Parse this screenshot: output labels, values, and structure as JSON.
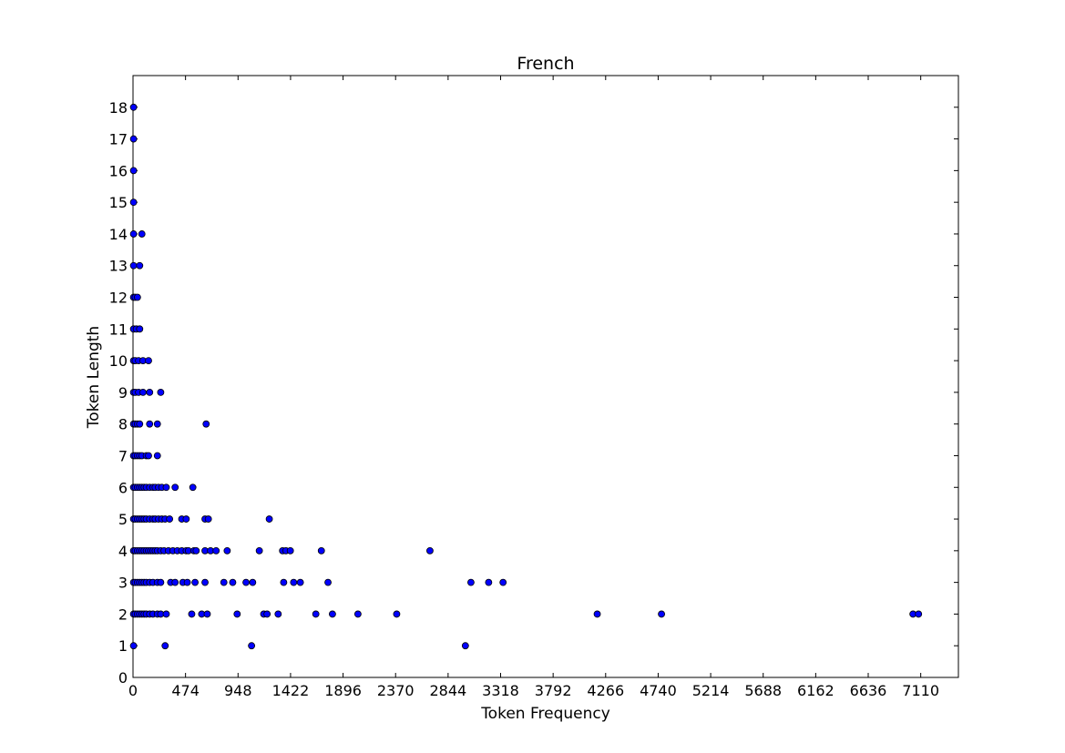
{
  "chart_data": {
    "type": "scatter",
    "title": "French",
    "xlabel": "Token Frequency",
    "ylabel": "Token Length",
    "xlim": [
      0,
      7450
    ],
    "ylim": [
      0,
      19
    ],
    "x_ticks": [
      0,
      474,
      948,
      1422,
      1896,
      2370,
      2844,
      3318,
      3792,
      4266,
      4740,
      5214,
      5688,
      6162,
      6636,
      7110
    ],
    "y_ticks": [
      0,
      1,
      2,
      3,
      4,
      5,
      6,
      7,
      8,
      9,
      10,
      11,
      12,
      13,
      14,
      15,
      16,
      17,
      18
    ],
    "grid": false,
    "marker_color": "#0000ff",
    "marker_edge_color": "#000000",
    "points": [
      [
        5,
        18
      ],
      [
        5,
        17
      ],
      [
        5,
        16
      ],
      [
        5,
        15
      ],
      [
        5,
        14
      ],
      [
        80,
        14
      ],
      [
        5,
        13
      ],
      [
        60,
        13
      ],
      [
        5,
        12
      ],
      [
        20,
        12
      ],
      [
        40,
        12
      ],
      [
        5,
        11
      ],
      [
        30,
        11
      ],
      [
        60,
        11
      ],
      [
        5,
        10
      ],
      [
        20,
        10
      ],
      [
        50,
        10
      ],
      [
        90,
        10
      ],
      [
        140,
        10
      ],
      [
        5,
        9
      ],
      [
        20,
        9
      ],
      [
        50,
        9
      ],
      [
        90,
        9
      ],
      [
        150,
        9
      ],
      [
        250,
        9
      ],
      [
        5,
        8
      ],
      [
        20,
        8
      ],
      [
        40,
        8
      ],
      [
        60,
        8
      ],
      [
        150,
        8
      ],
      [
        220,
        8
      ],
      [
        660,
        8
      ],
      [
        5,
        7
      ],
      [
        20,
        7
      ],
      [
        40,
        7
      ],
      [
        60,
        7
      ],
      [
        80,
        7
      ],
      [
        120,
        7
      ],
      [
        140,
        7
      ],
      [
        220,
        7
      ],
      [
        5,
        6
      ],
      [
        20,
        6
      ],
      [
        40,
        6
      ],
      [
        60,
        6
      ],
      [
        80,
        6
      ],
      [
        100,
        6
      ],
      [
        120,
        6
      ],
      [
        150,
        6
      ],
      [
        180,
        6
      ],
      [
        200,
        6
      ],
      [
        230,
        6
      ],
      [
        260,
        6
      ],
      [
        300,
        6
      ],
      [
        380,
        6
      ],
      [
        540,
        6
      ],
      [
        5,
        5
      ],
      [
        20,
        5
      ],
      [
        40,
        5
      ],
      [
        60,
        5
      ],
      [
        80,
        5
      ],
      [
        100,
        5
      ],
      [
        120,
        5
      ],
      [
        150,
        5
      ],
      [
        180,
        5
      ],
      [
        200,
        5
      ],
      [
        230,
        5
      ],
      [
        260,
        5
      ],
      [
        290,
        5
      ],
      [
        330,
        5
      ],
      [
        440,
        5
      ],
      [
        480,
        5
      ],
      [
        650,
        5
      ],
      [
        680,
        5
      ],
      [
        1230,
        5
      ],
      [
        5,
        4
      ],
      [
        20,
        4
      ],
      [
        40,
        4
      ],
      [
        60,
        4
      ],
      [
        80,
        4
      ],
      [
        100,
        4
      ],
      [
        120,
        4
      ],
      [
        140,
        4
      ],
      [
        160,
        4
      ],
      [
        180,
        4
      ],
      [
        200,
        4
      ],
      [
        220,
        4
      ],
      [
        250,
        4
      ],
      [
        280,
        4
      ],
      [
        320,
        4
      ],
      [
        360,
        4
      ],
      [
        400,
        4
      ],
      [
        440,
        4
      ],
      [
        480,
        4
      ],
      [
        500,
        4
      ],
      [
        550,
        4
      ],
      [
        570,
        4
      ],
      [
        650,
        4
      ],
      [
        700,
        4
      ],
      [
        750,
        4
      ],
      [
        850,
        4
      ],
      [
        1140,
        4
      ],
      [
        1350,
        4
      ],
      [
        1380,
        4
      ],
      [
        1420,
        4
      ],
      [
        1700,
        4
      ],
      [
        2680,
        4
      ],
      [
        5,
        3
      ],
      [
        20,
        3
      ],
      [
        40,
        3
      ],
      [
        60,
        3
      ],
      [
        80,
        3
      ],
      [
        100,
        3
      ],
      [
        120,
        3
      ],
      [
        150,
        3
      ],
      [
        180,
        3
      ],
      [
        220,
        3
      ],
      [
        250,
        3
      ],
      [
        340,
        3
      ],
      [
        380,
        3
      ],
      [
        450,
        3
      ],
      [
        490,
        3
      ],
      [
        560,
        3
      ],
      [
        650,
        3
      ],
      [
        820,
        3
      ],
      [
        900,
        3
      ],
      [
        1020,
        3
      ],
      [
        1080,
        3
      ],
      [
        1360,
        3
      ],
      [
        1450,
        3
      ],
      [
        1510,
        3
      ],
      [
        1760,
        3
      ],
      [
        3050,
        3
      ],
      [
        3210,
        3
      ],
      [
        3340,
        3
      ],
      [
        5,
        2
      ],
      [
        20,
        2
      ],
      [
        40,
        2
      ],
      [
        60,
        2
      ],
      [
        80,
        2
      ],
      [
        100,
        2
      ],
      [
        120,
        2
      ],
      [
        150,
        2
      ],
      [
        180,
        2
      ],
      [
        220,
        2
      ],
      [
        250,
        2
      ],
      [
        300,
        2
      ],
      [
        530,
        2
      ],
      [
        620,
        2
      ],
      [
        670,
        2
      ],
      [
        940,
        2
      ],
      [
        1180,
        2
      ],
      [
        1210,
        2
      ],
      [
        1310,
        2
      ],
      [
        1650,
        2
      ],
      [
        1800,
        2
      ],
      [
        2030,
        2
      ],
      [
        2380,
        2
      ],
      [
        4190,
        2
      ],
      [
        4770,
        2
      ],
      [
        7040,
        2
      ],
      [
        7090,
        2
      ],
      [
        5,
        1
      ],
      [
        290,
        1
      ],
      [
        1070,
        1
      ],
      [
        3000,
        1
      ]
    ]
  }
}
